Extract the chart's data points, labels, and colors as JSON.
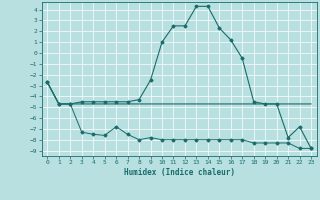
{
  "xlabel": "Humidex (Indice chaleur)",
  "xlim": [
    -0.5,
    23.5
  ],
  "ylim": [
    -9.5,
    4.7
  ],
  "yticks": [
    -9,
    -8,
    -7,
    -6,
    -5,
    -4,
    -3,
    -2,
    -1,
    0,
    1,
    2,
    3,
    4
  ],
  "xticks": [
    0,
    1,
    2,
    3,
    4,
    5,
    6,
    7,
    8,
    9,
    10,
    11,
    12,
    13,
    14,
    15,
    16,
    17,
    18,
    19,
    20,
    21,
    22,
    23
  ],
  "bg_color": "#b8e0e0",
  "line_color": "#1a6b6b",
  "grid_color": "#ffffff",
  "line1_x": [
    0,
    1,
    2,
    3,
    4,
    5,
    6,
    7,
    8,
    9,
    10,
    11,
    12,
    13,
    14,
    15,
    16,
    17,
    18,
    19,
    20,
    21,
    22,
    23
  ],
  "line1_y": [
    -2.7,
    -4.7,
    -4.7,
    -4.7,
    -4.7,
    -4.7,
    -4.7,
    -4.7,
    -4.7,
    -4.7,
    -4.7,
    -4.7,
    -4.7,
    -4.7,
    -4.7,
    -4.7,
    -4.7,
    -4.7,
    -4.7,
    -4.7,
    -4.7,
    -4.7,
    -4.7,
    -4.7
  ],
  "line2_x": [
    0,
    1,
    2,
    3,
    4,
    5,
    6,
    7,
    8,
    9,
    10,
    11,
    12,
    13,
    14,
    15,
    16,
    17,
    18,
    19,
    20,
    21,
    22,
    23
  ],
  "line2_y": [
    -2.7,
    -4.7,
    -4.7,
    -7.3,
    -7.5,
    -7.6,
    -6.8,
    -7.5,
    -8.0,
    -7.8,
    -8.0,
    -8.0,
    -8.0,
    -8.0,
    -8.0,
    -8.0,
    -8.0,
    -8.0,
    -8.3,
    -8.3,
    -8.3,
    -8.3,
    -8.8,
    -8.8
  ],
  "line3_x": [
    0,
    1,
    2,
    3,
    4,
    5,
    6,
    7,
    8,
    9,
    10,
    11,
    12,
    13,
    14,
    15,
    16,
    17,
    18,
    19,
    20,
    21,
    22,
    23
  ],
  "line3_y": [
    -2.7,
    -4.7,
    -4.7,
    -4.5,
    -4.5,
    -4.5,
    -4.5,
    -4.5,
    -4.3,
    -2.5,
    1.0,
    2.5,
    2.5,
    4.3,
    4.3,
    2.3,
    1.2,
    -0.5,
    -4.5,
    -4.7,
    -4.7,
    -7.8,
    -6.8,
    -8.8
  ]
}
